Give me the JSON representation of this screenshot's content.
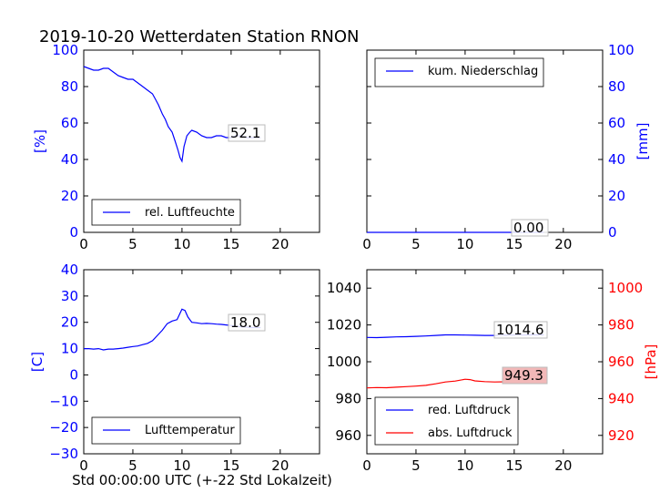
{
  "title": "2019-10-20 Wetterdaten Station RNON",
  "colors": {
    "blue": "#0000ff",
    "red": "#ff0000",
    "pressure_box": "#f2b8b8",
    "axis": "#000000"
  },
  "chart_data": [
    {
      "id": "humidity",
      "type": "line",
      "xlim": [
        0,
        24
      ],
      "ylim": [
        0,
        100
      ],
      "x_ticks": [
        "0",
        "5",
        "10",
        "15",
        "20"
      ],
      "y_ticks": [
        "0",
        "20",
        "40",
        "60",
        "80",
        "100"
      ],
      "ylabel": "[%]",
      "grid": false,
      "legend_position": "lower-left",
      "series": [
        {
          "name": "rel. Luftfeuchte",
          "color": "#0000ff",
          "x": [
            0,
            0.5,
            1,
            1.5,
            2,
            2.5,
            3,
            3.5,
            4,
            4.5,
            5,
            5.5,
            6,
            6.5,
            7,
            7.3,
            7.6,
            8,
            8.3,
            8.6,
            9,
            9.3,
            9.6,
            9.8,
            10,
            10.2,
            10.5,
            10.8,
            11,
            11.5,
            12,
            12.5,
            13,
            13.5,
            14,
            14.5,
            15,
            15.5,
            16,
            16.5,
            17,
            17.5,
            18
          ],
          "y": [
            91,
            90,
            89,
            89,
            90,
            90,
            88,
            86,
            85,
            84,
            84,
            82,
            80,
            78,
            76,
            73,
            70,
            65,
            62,
            58,
            55,
            50,
            45,
            41,
            39,
            47,
            53,
            55,
            56,
            55,
            53,
            52,
            52,
            53,
            53,
            52,
            52,
            53,
            53,
            52,
            52,
            52,
            52
          ]
        }
      ],
      "annotation": "52.1"
    },
    {
      "id": "precipitation",
      "type": "line",
      "xlim": [
        0,
        24
      ],
      "ylim": [
        0,
        100
      ],
      "x_ticks": [
        "0",
        "5",
        "10",
        "15",
        "20"
      ],
      "y_ticks": [
        "0",
        "20",
        "40",
        "60",
        "80",
        "100"
      ],
      "ylabel": "[mm]",
      "y_axis_side": "right",
      "grid": false,
      "legend_position": "upper-left",
      "series": [
        {
          "name": "kum. Niederschlag",
          "color": "#0000ff",
          "x": [
            0,
            6,
            12,
            18
          ],
          "y": [
            0,
            0,
            0,
            0
          ]
        }
      ],
      "annotation": "0.00"
    },
    {
      "id": "temperature",
      "type": "line",
      "xlim": [
        0,
        24
      ],
      "ylim": [
        -30,
        40
      ],
      "x_ticks": [
        "0",
        "5",
        "10",
        "15",
        "20"
      ],
      "y_ticks": [
        "−30",
        "−20",
        "−10",
        "0",
        "10",
        "20",
        "30",
        "40"
      ],
      "ylabel": "[C]",
      "xlabel": "Std 00:00:00 UTC (+-22 Std Lokalzeit)",
      "grid": false,
      "legend_position": "lower-left",
      "series": [
        {
          "name": "Lufttemperatur",
          "color": "#0000ff",
          "x": [
            0,
            0.5,
            1,
            1.5,
            2,
            2.5,
            3,
            3.5,
            4,
            4.5,
            5,
            5.5,
            6,
            6.5,
            7,
            7.5,
            8,
            8.5,
            9,
            9.5,
            10,
            10.3,
            10.6,
            11,
            11.5,
            12,
            12.5,
            13,
            13.5,
            14,
            14.5,
            15,
            15.5,
            16,
            16.5,
            17,
            17.5,
            18
          ],
          "y": [
            10,
            10,
            9.8,
            10,
            9.5,
            9.8,
            9.8,
            10,
            10.2,
            10.5,
            10.8,
            11,
            11.5,
            12,
            13,
            15,
            17,
            19.5,
            20.5,
            21,
            25,
            24.5,
            22,
            20,
            19.8,
            19.5,
            19.6,
            19.5,
            19.3,
            19.2,
            19,
            18.8,
            18.5,
            18.3,
            18.2,
            18,
            18,
            18
          ]
        }
      ],
      "annotation": "18.0"
    },
    {
      "id": "pressure",
      "type": "line",
      "xlim": [
        0,
        24
      ],
      "ylim": [
        950,
        1050
      ],
      "ylim_right": [
        910,
        1010
      ],
      "x_ticks": [
        "0",
        "5",
        "10",
        "15",
        "20"
      ],
      "y_ticks": [
        "960",
        "980",
        "1000",
        "1020",
        "1040"
      ],
      "y_ticks_right": [
        "920",
        "940",
        "960",
        "980",
        "1000"
      ],
      "ylabel_right": "[hPa]",
      "grid": false,
      "legend_position": "lower-left",
      "series": [
        {
          "name": "red. Luftdruck",
          "color": "#0000ff",
          "axis": "left",
          "x": [
            0,
            1,
            2,
            3,
            4,
            5,
            6,
            7,
            8,
            9,
            10,
            11,
            12,
            13,
            14,
            15,
            16,
            17,
            18
          ],
          "y": [
            1013.2,
            1013.1,
            1013.3,
            1013.5,
            1013.6,
            1013.8,
            1014.0,
            1014.3,
            1014.6,
            1014.6,
            1014.5,
            1014.4,
            1014.3,
            1014.3,
            1014.4,
            1014.5,
            1014.5,
            1014.6,
            1014.6
          ]
        },
        {
          "name": "abs. Luftdruck",
          "color": "#ff0000",
          "axis": "right",
          "x": [
            0,
            1,
            2,
            3,
            4,
            5,
            6,
            7,
            8,
            9,
            10,
            10.5,
            11,
            12,
            13,
            14,
            15,
            16,
            17,
            18
          ],
          "y": [
            945.8,
            946.0,
            945.9,
            946.2,
            946.5,
            946.8,
            947.2,
            948.0,
            949.0,
            949.5,
            950.5,
            950.3,
            949.6,
            949.2,
            949.0,
            949.1,
            949.2,
            949.3,
            949.3,
            949.3
          ]
        }
      ],
      "annotations": [
        "1014.6",
        "949.3"
      ]
    }
  ]
}
